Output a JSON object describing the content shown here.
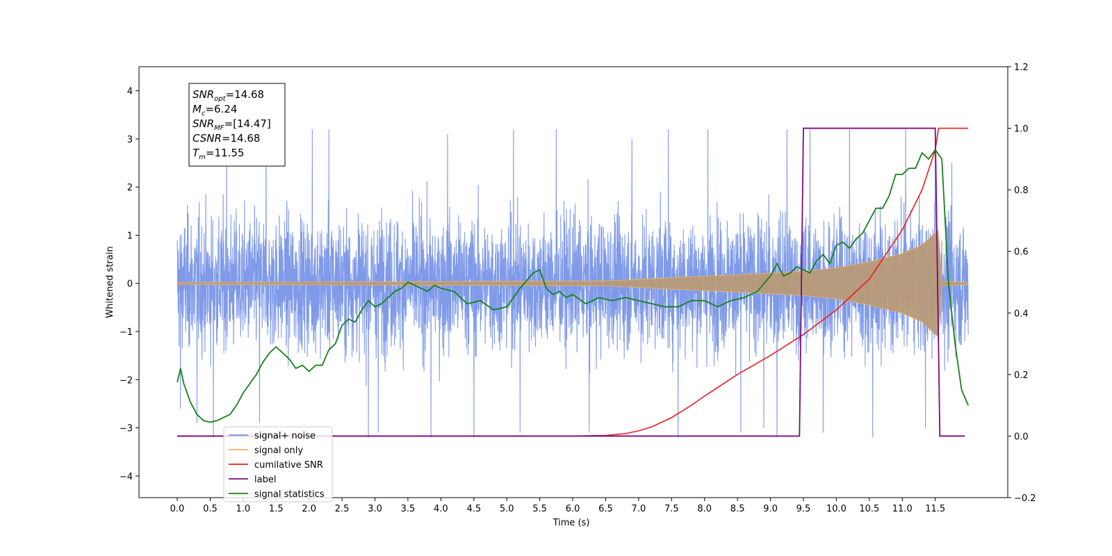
{
  "chart_data": {
    "type": "line",
    "xlabel": "Time (s)",
    "ylabel": "Whitened strain",
    "xlim": [
      -0.58,
      12.6
    ],
    "ylim": [
      -4.45,
      4.5
    ],
    "y2lim": [
      -0.2,
      1.2
    ],
    "x_ticks": [
      "0.0",
      "0.5",
      "1.0",
      "1.5",
      "2.0",
      "2.5",
      "3.0",
      "3.5",
      "4.0",
      "4.5",
      "5.0",
      "5.5",
      "6.0",
      "6.5",
      "7.0",
      "7.5",
      "8.0",
      "8.5",
      "9.0",
      "9.5",
      "10.0",
      "10.5",
      "11.0",
      "11.5"
    ],
    "y_ticks": [
      "4",
      "3",
      "2",
      "1",
      "0",
      "−1",
      "−2",
      "−3",
      "−4"
    ],
    "y2_ticks": [
      "1.2",
      "1.0",
      "0.8",
      "0.6",
      "0.4",
      "0.2",
      "0.0",
      "−0.2"
    ],
    "grid": false,
    "legend_position": "lower-left",
    "stats_box": [
      {
        "base": "SNR",
        "sub": "opt",
        "value": "=14.68"
      },
      {
        "base": "M",
        "sub": "c",
        "value": "=6.24"
      },
      {
        "base": "SNR",
        "sub": "MF",
        "value": "=[14.47]"
      },
      {
        "base": "CSNR",
        "sub": "",
        "value": "=14.68"
      },
      {
        "base": "T",
        "sub": "m",
        "value": "=11.55"
      }
    ],
    "series": [
      {
        "name": "signal+ noise",
        "color": "#7895e8",
        "axis": "left",
        "description_type": "noise",
        "x_range": [
          0.0,
          12.0
        ],
        "envelope": [
          -2.0,
          2.2
        ],
        "spikes": [
          [
            0.05,
            -2.6
          ],
          [
            0.3,
            -2.9
          ],
          [
            0.55,
            -3.4
          ],
          [
            0.75,
            2.6
          ],
          [
            1.25,
            -2.9
          ],
          [
            1.35,
            3.1
          ],
          [
            2.05,
            3.2
          ],
          [
            2.3,
            3.3
          ],
          [
            2.9,
            -3.3
          ],
          [
            3.05,
            -3.1
          ],
          [
            3.85,
            -3.3
          ],
          [
            4.1,
            3.1
          ],
          [
            4.5,
            -3.4
          ],
          [
            5.1,
            3.2
          ],
          [
            5.2,
            -3.1
          ],
          [
            5.75,
            3.3
          ],
          [
            6.25,
            -3.1
          ],
          [
            6.9,
            3.0
          ],
          [
            7.45,
            3.2
          ],
          [
            7.6,
            -4.0
          ],
          [
            8.05,
            3.2
          ],
          [
            8.55,
            -3.1
          ],
          [
            8.9,
            -3.0
          ],
          [
            9.1,
            -3.95
          ],
          [
            9.25,
            3.3
          ],
          [
            9.6,
            3.6
          ],
          [
            9.8,
            -3.1
          ],
          [
            10.2,
            3.3
          ],
          [
            10.55,
            -3.3
          ],
          [
            11.05,
            4.1
          ],
          [
            11.35,
            -3.0
          ],
          [
            11.5,
            3.0
          ],
          [
            11.75,
            2.5
          ]
        ]
      },
      {
        "name": "signal only",
        "color": "#f5b35e",
        "axis": "left",
        "description_type": "chirp",
        "x_range": [
          0.0,
          12.0
        ],
        "amplitude_points": [
          [
            0.0,
            0.02
          ],
          [
            6.5,
            0.05
          ],
          [
            7.5,
            0.12
          ],
          [
            8.5,
            0.18
          ],
          [
            9.5,
            0.25
          ],
          [
            10.0,
            0.32
          ],
          [
            10.5,
            0.45
          ],
          [
            11.0,
            0.62
          ],
          [
            11.3,
            0.8
          ],
          [
            11.55,
            1.12
          ],
          [
            11.6,
            0.05
          ],
          [
            12.0,
            0.02
          ]
        ]
      },
      {
        "name": "cumilative SNR",
        "color": "#ee1c1c",
        "axis": "right",
        "x": [
          0.0,
          6.0,
          6.5,
          6.8,
          7.0,
          7.2,
          7.5,
          7.8,
          8.0,
          8.5,
          9.0,
          9.5,
          10.0,
          10.5,
          11.0,
          11.3,
          11.5,
          11.55,
          12.0
        ],
        "y": [
          0.0,
          0.0,
          0.002,
          0.008,
          0.017,
          0.03,
          0.06,
          0.1,
          0.13,
          0.2,
          0.262,
          0.33,
          0.41,
          0.51,
          0.67,
          0.8,
          0.93,
          1.0,
          1.0
        ]
      },
      {
        "name": "label",
        "color": "#7a0a80",
        "axis": "right",
        "x": [
          0.0,
          9.44,
          9.5,
          11.5,
          11.57,
          11.95
        ],
        "y": [
          0.0,
          0.0,
          1.0,
          1.0,
          0.0,
          0.0
        ]
      },
      {
        "name": "signal statistics",
        "color": "#15801a",
        "axis": "right",
        "x": [
          0.0,
          0.05,
          0.1,
          0.2,
          0.3,
          0.4,
          0.5,
          0.6,
          0.7,
          0.8,
          0.9,
          1.0,
          1.1,
          1.2,
          1.3,
          1.4,
          1.5,
          1.6,
          1.7,
          1.8,
          1.9,
          2.0,
          2.1,
          2.2,
          2.3,
          2.4,
          2.5,
          2.6,
          2.7,
          2.8,
          2.9,
          3.0,
          3.1,
          3.2,
          3.3,
          3.4,
          3.5,
          3.6,
          3.7,
          3.8,
          3.9,
          4.0,
          4.2,
          4.4,
          4.6,
          4.8,
          5.0,
          5.2,
          5.4,
          5.5,
          5.6,
          5.7,
          5.8,
          5.9,
          6.0,
          6.2,
          6.4,
          6.6,
          6.8,
          7.0,
          7.2,
          7.4,
          7.6,
          7.8,
          8.0,
          8.2,
          8.4,
          8.6,
          8.8,
          9.0,
          9.1,
          9.2,
          9.3,
          9.4,
          9.5,
          9.6,
          9.7,
          9.8,
          9.9,
          10.0,
          10.1,
          10.2,
          10.3,
          10.4,
          10.5,
          10.6,
          10.7,
          10.8,
          10.9,
          11.0,
          11.1,
          11.2,
          11.3,
          11.4,
          11.5,
          11.6,
          11.7,
          11.8,
          11.9,
          12.0
        ],
        "y": [
          0.175,
          0.22,
          0.17,
          0.11,
          0.07,
          0.05,
          0.045,
          0.05,
          0.06,
          0.07,
          0.1,
          0.14,
          0.17,
          0.2,
          0.24,
          0.27,
          0.29,
          0.27,
          0.25,
          0.22,
          0.23,
          0.21,
          0.23,
          0.23,
          0.28,
          0.3,
          0.36,
          0.38,
          0.37,
          0.41,
          0.44,
          0.42,
          0.43,
          0.45,
          0.47,
          0.48,
          0.5,
          0.49,
          0.48,
          0.47,
          0.49,
          0.48,
          0.47,
          0.43,
          0.44,
          0.41,
          0.42,
          0.48,
          0.53,
          0.54,
          0.48,
          0.46,
          0.47,
          0.45,
          0.46,
          0.43,
          0.45,
          0.44,
          0.45,
          0.44,
          0.43,
          0.42,
          0.42,
          0.44,
          0.44,
          0.42,
          0.44,
          0.45,
          0.47,
          0.52,
          0.56,
          0.52,
          0.53,
          0.55,
          0.54,
          0.53,
          0.57,
          0.59,
          0.56,
          0.62,
          0.63,
          0.61,
          0.64,
          0.66,
          0.7,
          0.74,
          0.74,
          0.78,
          0.85,
          0.85,
          0.87,
          0.87,
          0.92,
          0.9,
          0.93,
          0.9,
          0.5,
          0.3,
          0.15,
          0.1
        ]
      }
    ]
  }
}
